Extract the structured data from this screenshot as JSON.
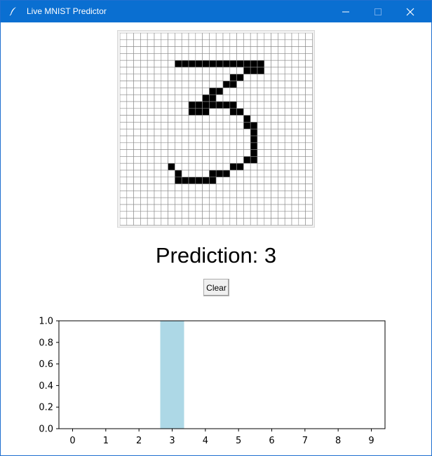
{
  "window": {
    "title": "Live MNIST Predictor",
    "controls": {
      "minimize": "—",
      "maximize": "☐",
      "close": "✕"
    }
  },
  "drawing_grid": {
    "rows": 28,
    "cols": 28,
    "filled_color": "#000000",
    "empty_color": "#ffffff",
    "line_color": "#8a8a8a",
    "filled_cells": [
      [
        4,
        8
      ],
      [
        4,
        9
      ],
      [
        4,
        10
      ],
      [
        4,
        11
      ],
      [
        4,
        12
      ],
      [
        4,
        13
      ],
      [
        4,
        14
      ],
      [
        4,
        15
      ],
      [
        4,
        16
      ],
      [
        4,
        17
      ],
      [
        4,
        18
      ],
      [
        4,
        19
      ],
      [
        4,
        20
      ],
      [
        5,
        18
      ],
      [
        5,
        19
      ],
      [
        5,
        20
      ],
      [
        6,
        16
      ],
      [
        6,
        17
      ],
      [
        7,
        15
      ],
      [
        7,
        16
      ],
      [
        8,
        13
      ],
      [
        8,
        14
      ],
      [
        9,
        12
      ],
      [
        9,
        13
      ],
      [
        10,
        10
      ],
      [
        10,
        11
      ],
      [
        10,
        12
      ],
      [
        10,
        13
      ],
      [
        10,
        14
      ],
      [
        10,
        15
      ],
      [
        10,
        16
      ],
      [
        11,
        10
      ],
      [
        11,
        11
      ],
      [
        11,
        12
      ],
      [
        11,
        16
      ],
      [
        11,
        17
      ],
      [
        12,
        18
      ],
      [
        13,
        18
      ],
      [
        13,
        19
      ],
      [
        14,
        19
      ],
      [
        15,
        19
      ],
      [
        16,
        19
      ],
      [
        17,
        19
      ],
      [
        18,
        18
      ],
      [
        18,
        19
      ],
      [
        19,
        7
      ],
      [
        19,
        16
      ],
      [
        19,
        17
      ],
      [
        20,
        8
      ],
      [
        20,
        13
      ],
      [
        20,
        14
      ],
      [
        20,
        15
      ],
      [
        21,
        8
      ],
      [
        21,
        9
      ],
      [
        21,
        10
      ],
      [
        21,
        11
      ],
      [
        21,
        12
      ],
      [
        21,
        13
      ]
    ]
  },
  "prediction": {
    "label": "Prediction: 3"
  },
  "clear_button": {
    "label": "Clear"
  },
  "chart_data": {
    "type": "bar",
    "categories": [
      "0",
      "1",
      "2",
      "3",
      "4",
      "5",
      "6",
      "7",
      "8",
      "9"
    ],
    "values": [
      0.0,
      0.0,
      0.0,
      1.0,
      0.0,
      0.0,
      0.0,
      0.0,
      0.0,
      0.0
    ],
    "ylim": [
      0,
      1.0
    ],
    "yticks": [
      "0.0",
      "0.2",
      "0.4",
      "0.6",
      "0.8",
      "1.0"
    ],
    "bar_color": "#add8e6",
    "title": "",
    "xlabel": "",
    "ylabel": ""
  }
}
